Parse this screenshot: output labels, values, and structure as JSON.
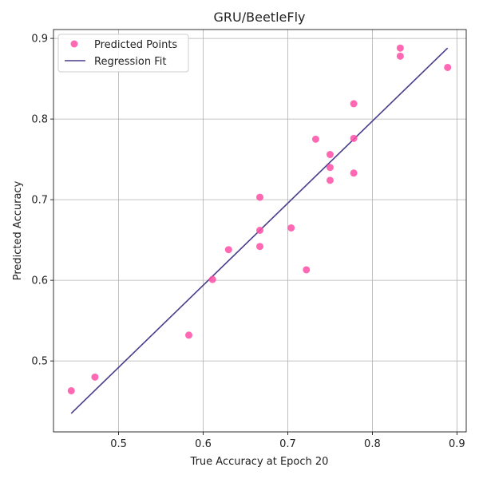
{
  "chart_data": {
    "type": "scatter",
    "title": "GRU/BeetleFly",
    "xlabel": "True Accuracy at Epoch 20",
    "ylabel": "Predicted Accuracy",
    "xlim": [
      0.423,
      0.911
    ],
    "ylim": [
      0.412,
      0.911
    ],
    "xticks": [
      0.5,
      0.6,
      0.7,
      0.8,
      0.9
    ],
    "yticks": [
      0.5,
      0.6,
      0.7,
      0.8,
      0.9
    ],
    "grid": true,
    "legend_position": "top-left",
    "series": [
      {
        "name": "Predicted Points",
        "kind": "scatter",
        "color": "#ff4fa7",
        "points": [
          [
            0.444,
            0.463
          ],
          [
            0.472,
            0.48
          ],
          [
            0.583,
            0.532
          ],
          [
            0.611,
            0.601
          ],
          [
            0.63,
            0.638
          ],
          [
            0.667,
            0.703
          ],
          [
            0.667,
            0.662
          ],
          [
            0.667,
            0.642
          ],
          [
            0.704,
            0.665
          ],
          [
            0.722,
            0.613
          ],
          [
            0.733,
            0.775
          ],
          [
            0.75,
            0.756
          ],
          [
            0.75,
            0.74
          ],
          [
            0.75,
            0.724
          ],
          [
            0.778,
            0.819
          ],
          [
            0.778,
            0.776
          ],
          [
            0.778,
            0.733
          ],
          [
            0.833,
            0.888
          ],
          [
            0.833,
            0.878
          ],
          [
            0.889,
            0.864
          ]
        ]
      },
      {
        "name": "Regression Fit",
        "kind": "line",
        "color": "#483d8b",
        "points": [
          [
            0.444,
            0.435
          ],
          [
            0.889,
            0.888
          ]
        ]
      }
    ]
  }
}
